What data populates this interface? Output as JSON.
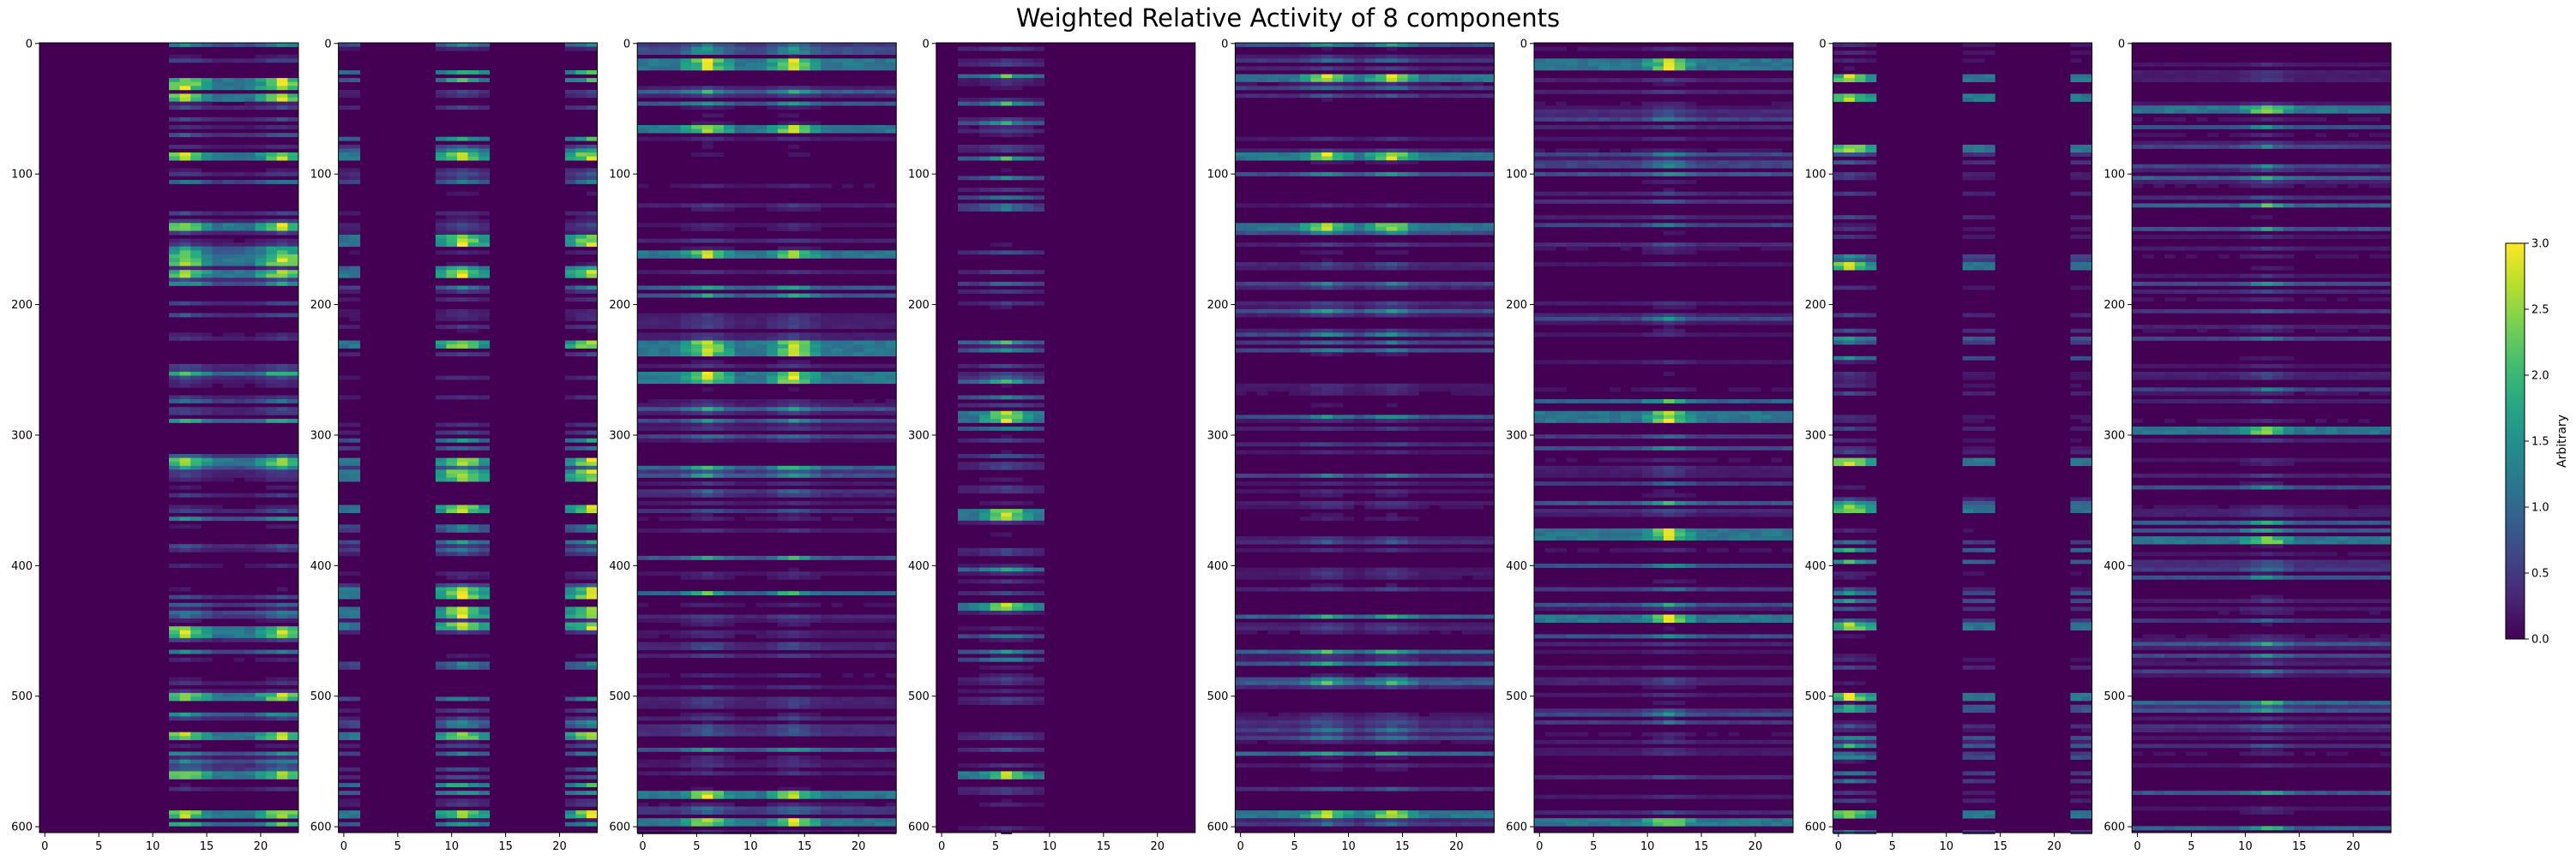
{
  "chart_data": {
    "type": "heatmap",
    "title": "Weighted Relative Activity of 8 components",
    "panel_count": 8,
    "rows": 605,
    "columns": 24,
    "x_ticks": [
      0,
      5,
      10,
      15,
      20
    ],
    "y_ticks": [
      0,
      100,
      200,
      300,
      400,
      500,
      600
    ],
    "xlim": [
      -0.5,
      23.5
    ],
    "ylim": [
      604.5,
      -0.5
    ],
    "colormap": "viridis",
    "colorbar": {
      "label": "Arbitrary",
      "range": [
        0.0,
        3.0
      ],
      "ticks": [
        "0.0",
        "0.5",
        "1.0",
        "1.5",
        "2.0",
        "2.5",
        "3.0"
      ]
    },
    "panels": [
      {
        "active_columns": [
          12,
          13,
          14,
          15,
          16,
          17,
          18,
          19,
          20,
          21,
          22,
          23
        ],
        "peak_columns": [
          13,
          22
        ],
        "bright_rows": [
          30,
          40,
          85,
          140,
          165,
          175,
          320,
          450,
          500,
          530,
          560,
          590
        ]
      },
      {
        "active_columns": [
          0,
          1,
          9,
          10,
          11,
          12,
          13,
          21,
          22,
          23
        ],
        "peak_columns": [
          11,
          23
        ],
        "bright_rows": [
          85,
          150,
          175,
          230,
          320,
          330,
          355,
          420,
          435,
          445,
          530,
          590
        ]
      },
      {
        "active_columns": [
          0,
          1,
          2,
          3,
          4,
          5,
          6,
          7,
          8,
          9,
          10,
          11,
          12,
          13,
          14,
          15,
          16,
          17,
          18,
          19,
          20,
          21,
          22,
          23
        ],
        "peak_columns": [
          6,
          14
        ],
        "bright_rows": [
          15,
          65,
          160,
          230,
          235,
          255,
          575,
          595
        ]
      },
      {
        "active_columns": [
          2,
          3,
          4,
          5,
          6,
          7,
          8,
          9
        ],
        "peak_columns": [
          6
        ],
        "bright_rows": [
          285,
          360,
          430,
          560
        ]
      },
      {
        "active_columns": [
          0,
          1,
          2,
          3,
          4,
          5,
          6,
          7,
          8,
          9,
          10,
          11,
          12,
          13,
          14,
          15,
          16,
          17,
          18,
          19,
          20,
          21,
          22,
          23
        ],
        "peak_columns": [
          8,
          14
        ],
        "bright_rows": [
          25,
          85,
          140,
          590
        ]
      },
      {
        "active_columns": [
          0,
          1,
          2,
          3,
          4,
          5,
          6,
          7,
          8,
          9,
          10,
          11,
          12,
          13,
          14,
          15,
          16,
          17,
          18,
          19,
          20,
          21,
          22,
          23
        ],
        "peak_columns": [
          12
        ],
        "bright_rows": [
          15,
          285,
          375,
          440,
          595
        ]
      },
      {
        "active_columns": [
          0,
          1,
          2,
          3,
          12,
          13,
          14,
          22,
          23
        ],
        "peak_columns": [
          1
        ],
        "bright_rows": [
          25,
          40,
          80,
          170,
          320,
          355,
          445,
          500,
          590
        ]
      },
      {
        "active_columns": [
          0,
          1,
          2,
          3,
          4,
          5,
          6,
          7,
          8,
          9,
          10,
          11,
          12,
          13,
          14,
          15,
          16,
          17,
          18,
          19,
          20,
          21,
          22,
          23
        ],
        "peak_columns": [
          12
        ],
        "bright_rows": [
          50,
          295,
          380
        ]
      }
    ]
  }
}
